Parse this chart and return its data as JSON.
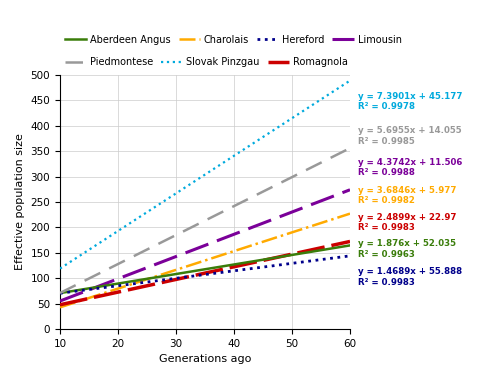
{
  "xlabel": "Generations ago",
  "ylabel": "Effective population size",
  "xlim": [
    10,
    60
  ],
  "ylim": [
    0,
    500
  ],
  "xticks": [
    10,
    20,
    30,
    40,
    50,
    60
  ],
  "yticks": [
    0,
    50,
    100,
    150,
    200,
    250,
    300,
    350,
    400,
    450,
    500
  ],
  "breeds": [
    {
      "name": "Slovak Pinzgau",
      "slope": 7.3901,
      "intercept": 45.177,
      "color": "#00aadd",
      "linestyle": "dotted",
      "linewidth": 1.6,
      "eq_color": "#00aadd",
      "eq_text": "y = 7.3901x + 45.177\nR² = 0.9978",
      "eq_y": 0.895
    },
    {
      "name": "Piedmontese",
      "slope": 5.6955,
      "intercept": 14.055,
      "color": "#999999",
      "linestyle": "dashed",
      "linewidth": 1.8,
      "eq_color": "#999999",
      "eq_text": "y = 5.6955x + 14.055\nR² = 0.9985",
      "eq_y": 0.76
    },
    {
      "name": "Limousin",
      "slope": 4.3742,
      "intercept": 11.506,
      "color": "#7b0099",
      "linestyle": "dashed",
      "linewidth": 2.2,
      "eq_color": "#7b0099",
      "eq_text": "y = 4.3742x + 11.506\nR² = 0.9988",
      "eq_y": 0.635
    },
    {
      "name": "Charolais",
      "slope": 3.6846,
      "intercept": 5.977,
      "color": "#ffaa00",
      "linestyle": "dashdot",
      "linewidth": 1.8,
      "eq_color": "#ffaa00",
      "eq_text": "y = 3.6846x + 5.977\nR² = 0.9982",
      "eq_y": 0.525
    },
    {
      "name": "Romagnola",
      "slope": 2.4899,
      "intercept": 22.97,
      "color": "#cc0000",
      "linestyle": "dashed",
      "linewidth": 2.5,
      "eq_color": "#cc0000",
      "eq_text": "y = 2.4899x + 22.97\nR² = 0.9983",
      "eq_y": 0.42
    },
    {
      "name": "Aberdeen Angus",
      "slope": 1.876,
      "intercept": 52.035,
      "color": "#3a7d0a",
      "linestyle": "solid",
      "linewidth": 1.8,
      "eq_color": "#3a7d0a",
      "eq_text": "y = 1.876x + 52.035\nR² = 0.9963",
      "eq_y": 0.315
    },
    {
      "name": "Hereford",
      "slope": 1.4689,
      "intercept": 55.888,
      "color": "#00008b",
      "linestyle": "dotted",
      "linewidth": 2.0,
      "eq_color": "#00008b",
      "eq_text": "y = 1.4689x + 55.888\nR² = 0.9983",
      "eq_y": 0.205
    }
  ],
  "legend_row1": [
    {
      "name": "Aberdeen Angus",
      "color": "#3a7d0a",
      "linestyle": "solid",
      "linewidth": 1.8
    },
    {
      "name": "Charolais",
      "color": "#ffaa00",
      "linestyle": "dashdot",
      "linewidth": 1.8
    },
    {
      "name": "Hereford",
      "color": "#00008b",
      "linestyle": "dotted",
      "linewidth": 2.0
    },
    {
      "name": "Limousin",
      "color": "#7b0099",
      "linestyle": "dashed",
      "linewidth": 2.2
    }
  ],
  "legend_row2": [
    {
      "name": "Piedmontese",
      "color": "#999999",
      "linestyle": "dashed",
      "linewidth": 1.8
    },
    {
      "name": "Slovak Pinzgau",
      "color": "#00aadd",
      "linestyle": "dotted",
      "linewidth": 1.6
    },
    {
      "name": "Romagnola",
      "color": "#cc0000",
      "linestyle": "dashed",
      "linewidth": 2.5
    }
  ],
  "background_color": "#ffffff",
  "grid_color": "#cccccc"
}
